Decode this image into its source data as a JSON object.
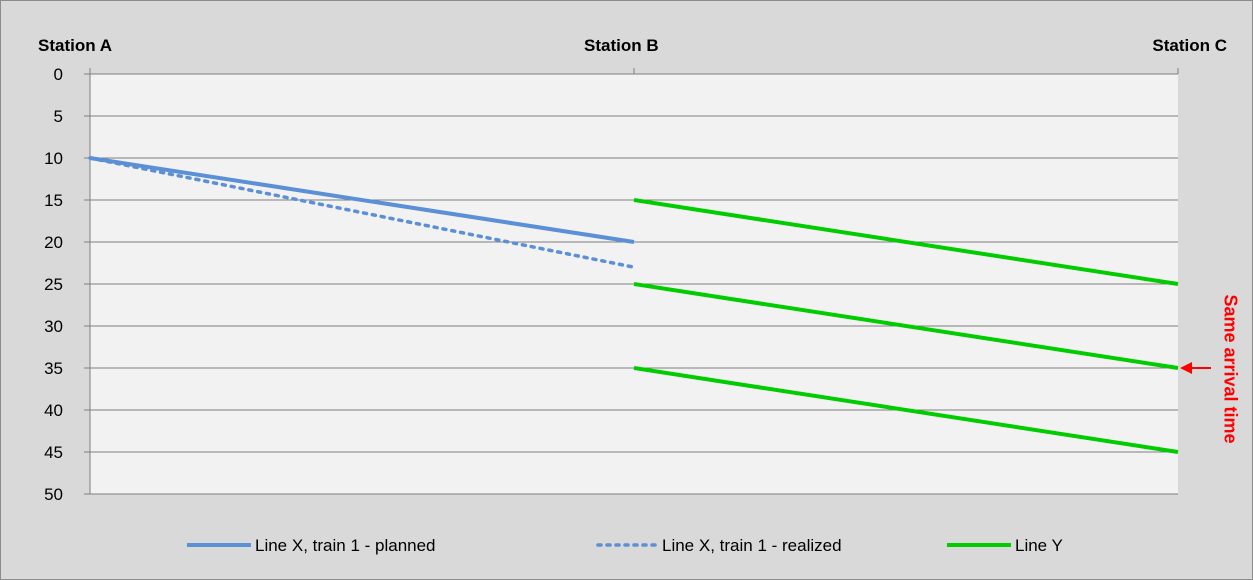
{
  "chart_data": {
    "type": "line",
    "title": "",
    "x_categories": [
      "Station A",
      "Station B",
      "Station C"
    ],
    "y_axis": {
      "min": 0,
      "max": 50,
      "step": 5,
      "reversed": true,
      "ticks": [
        "0",
        "5",
        "10",
        "15",
        "20",
        "25",
        "30",
        "35",
        "40",
        "45",
        "50"
      ]
    },
    "grid": true,
    "legend_position": "bottom",
    "series": [
      {
        "name": "Line X, train 1 - planned",
        "style": "solid",
        "color": "#5b8fd6",
        "points": [
          {
            "x": "Station A",
            "y": 10
          },
          {
            "x": "Station B",
            "y": 20
          }
        ]
      },
      {
        "name": "Line X, train 1 - realized",
        "style": "dotted",
        "color": "#5b8fd6",
        "points": [
          {
            "x": "Station A",
            "y": 10
          },
          {
            "x": "Station B",
            "y": 23
          }
        ]
      },
      {
        "name": "Line Y",
        "style": "solid",
        "color": "#00cc00",
        "trips": [
          [
            {
              "x": "Station B",
              "y": 15
            },
            {
              "x": "Station C",
              "y": 25
            }
          ],
          [
            {
              "x": "Station B",
              "y": 25
            },
            {
              "x": "Station C",
              "y": 35
            }
          ],
          [
            {
              "x": "Station B",
              "y": 35
            },
            {
              "x": "Station C",
              "y": 45
            }
          ]
        ]
      }
    ],
    "annotation": {
      "text": "Same arrival time",
      "color": "#ff0000",
      "target": {
        "x": "Station C",
        "y": 35
      }
    }
  }
}
